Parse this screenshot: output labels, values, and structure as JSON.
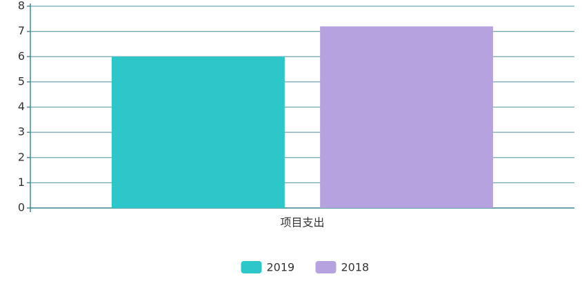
{
  "chart_data": {
    "type": "bar",
    "categories": [
      "项目支出"
    ],
    "series": [
      {
        "name": "2019",
        "color": "#2ec7c9",
        "values": [
          6
        ]
      },
      {
        "name": "2018",
        "color": "#b6a2de",
        "values": [
          7.2
        ]
      }
    ],
    "ylim": [
      0,
      8
    ],
    "yticks": [
      0,
      1,
      2,
      3,
      4,
      5,
      6,
      7,
      8
    ],
    "grid": true,
    "legend": "bottom"
  }
}
